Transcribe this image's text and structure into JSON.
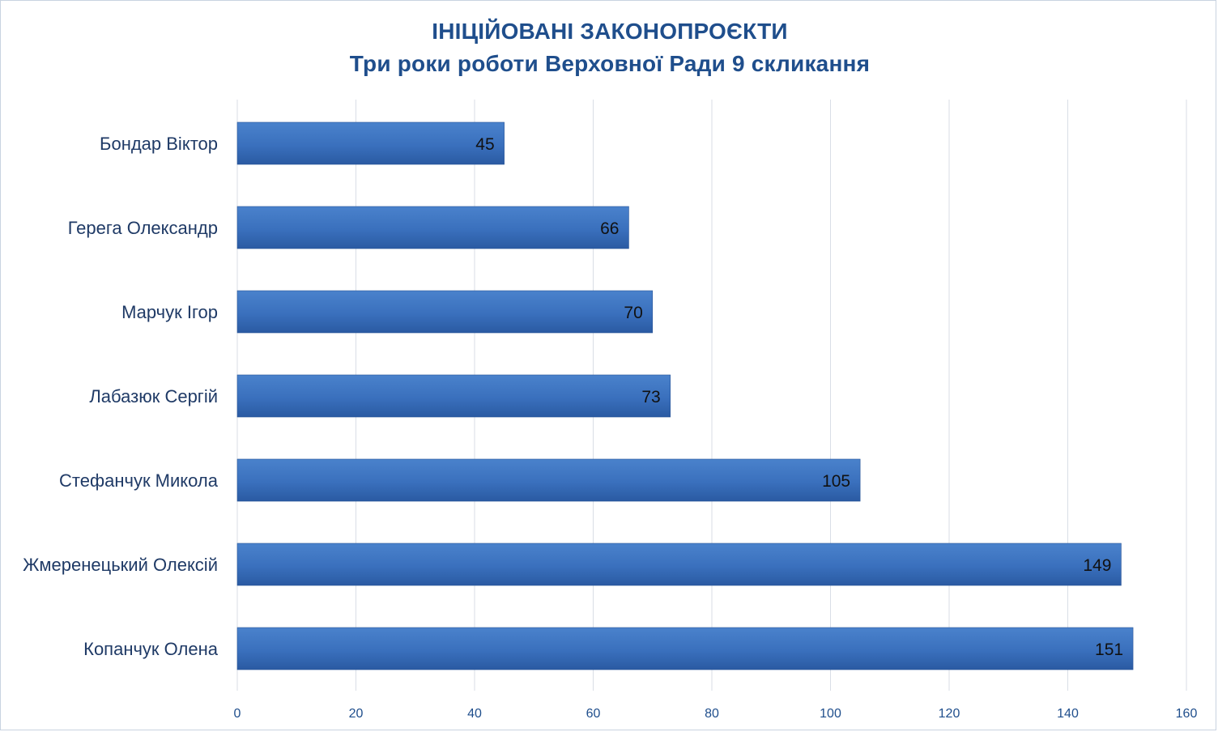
{
  "chart_data": {
    "type": "bar",
    "orientation": "horizontal",
    "title": "ІНІЦІЙОВАНІ ЗАКОНОПРОЄКТИ",
    "subtitle": "Три роки роботи Верховної Ради 9 скликання",
    "categories": [
      "Бондар Віктор",
      "Герега Олександр",
      "Марчук Ігор",
      "Лабазюк Сергій",
      "Стефанчук Микола",
      "Жмеренецький Олексій",
      "Копанчук Олена"
    ],
    "values": [
      45,
      66,
      70,
      73,
      105,
      149,
      151
    ],
    "xlim": [
      0,
      160
    ],
    "xticks": [
      "0",
      "20",
      "40",
      "60",
      "80",
      "100",
      "120",
      "140",
      "160"
    ],
    "grid": "vertical",
    "legend": "none",
    "bar_color": "#3a70bd",
    "bar_color_dark": "#2a5aa2",
    "text_color": "#1f4e8c"
  }
}
